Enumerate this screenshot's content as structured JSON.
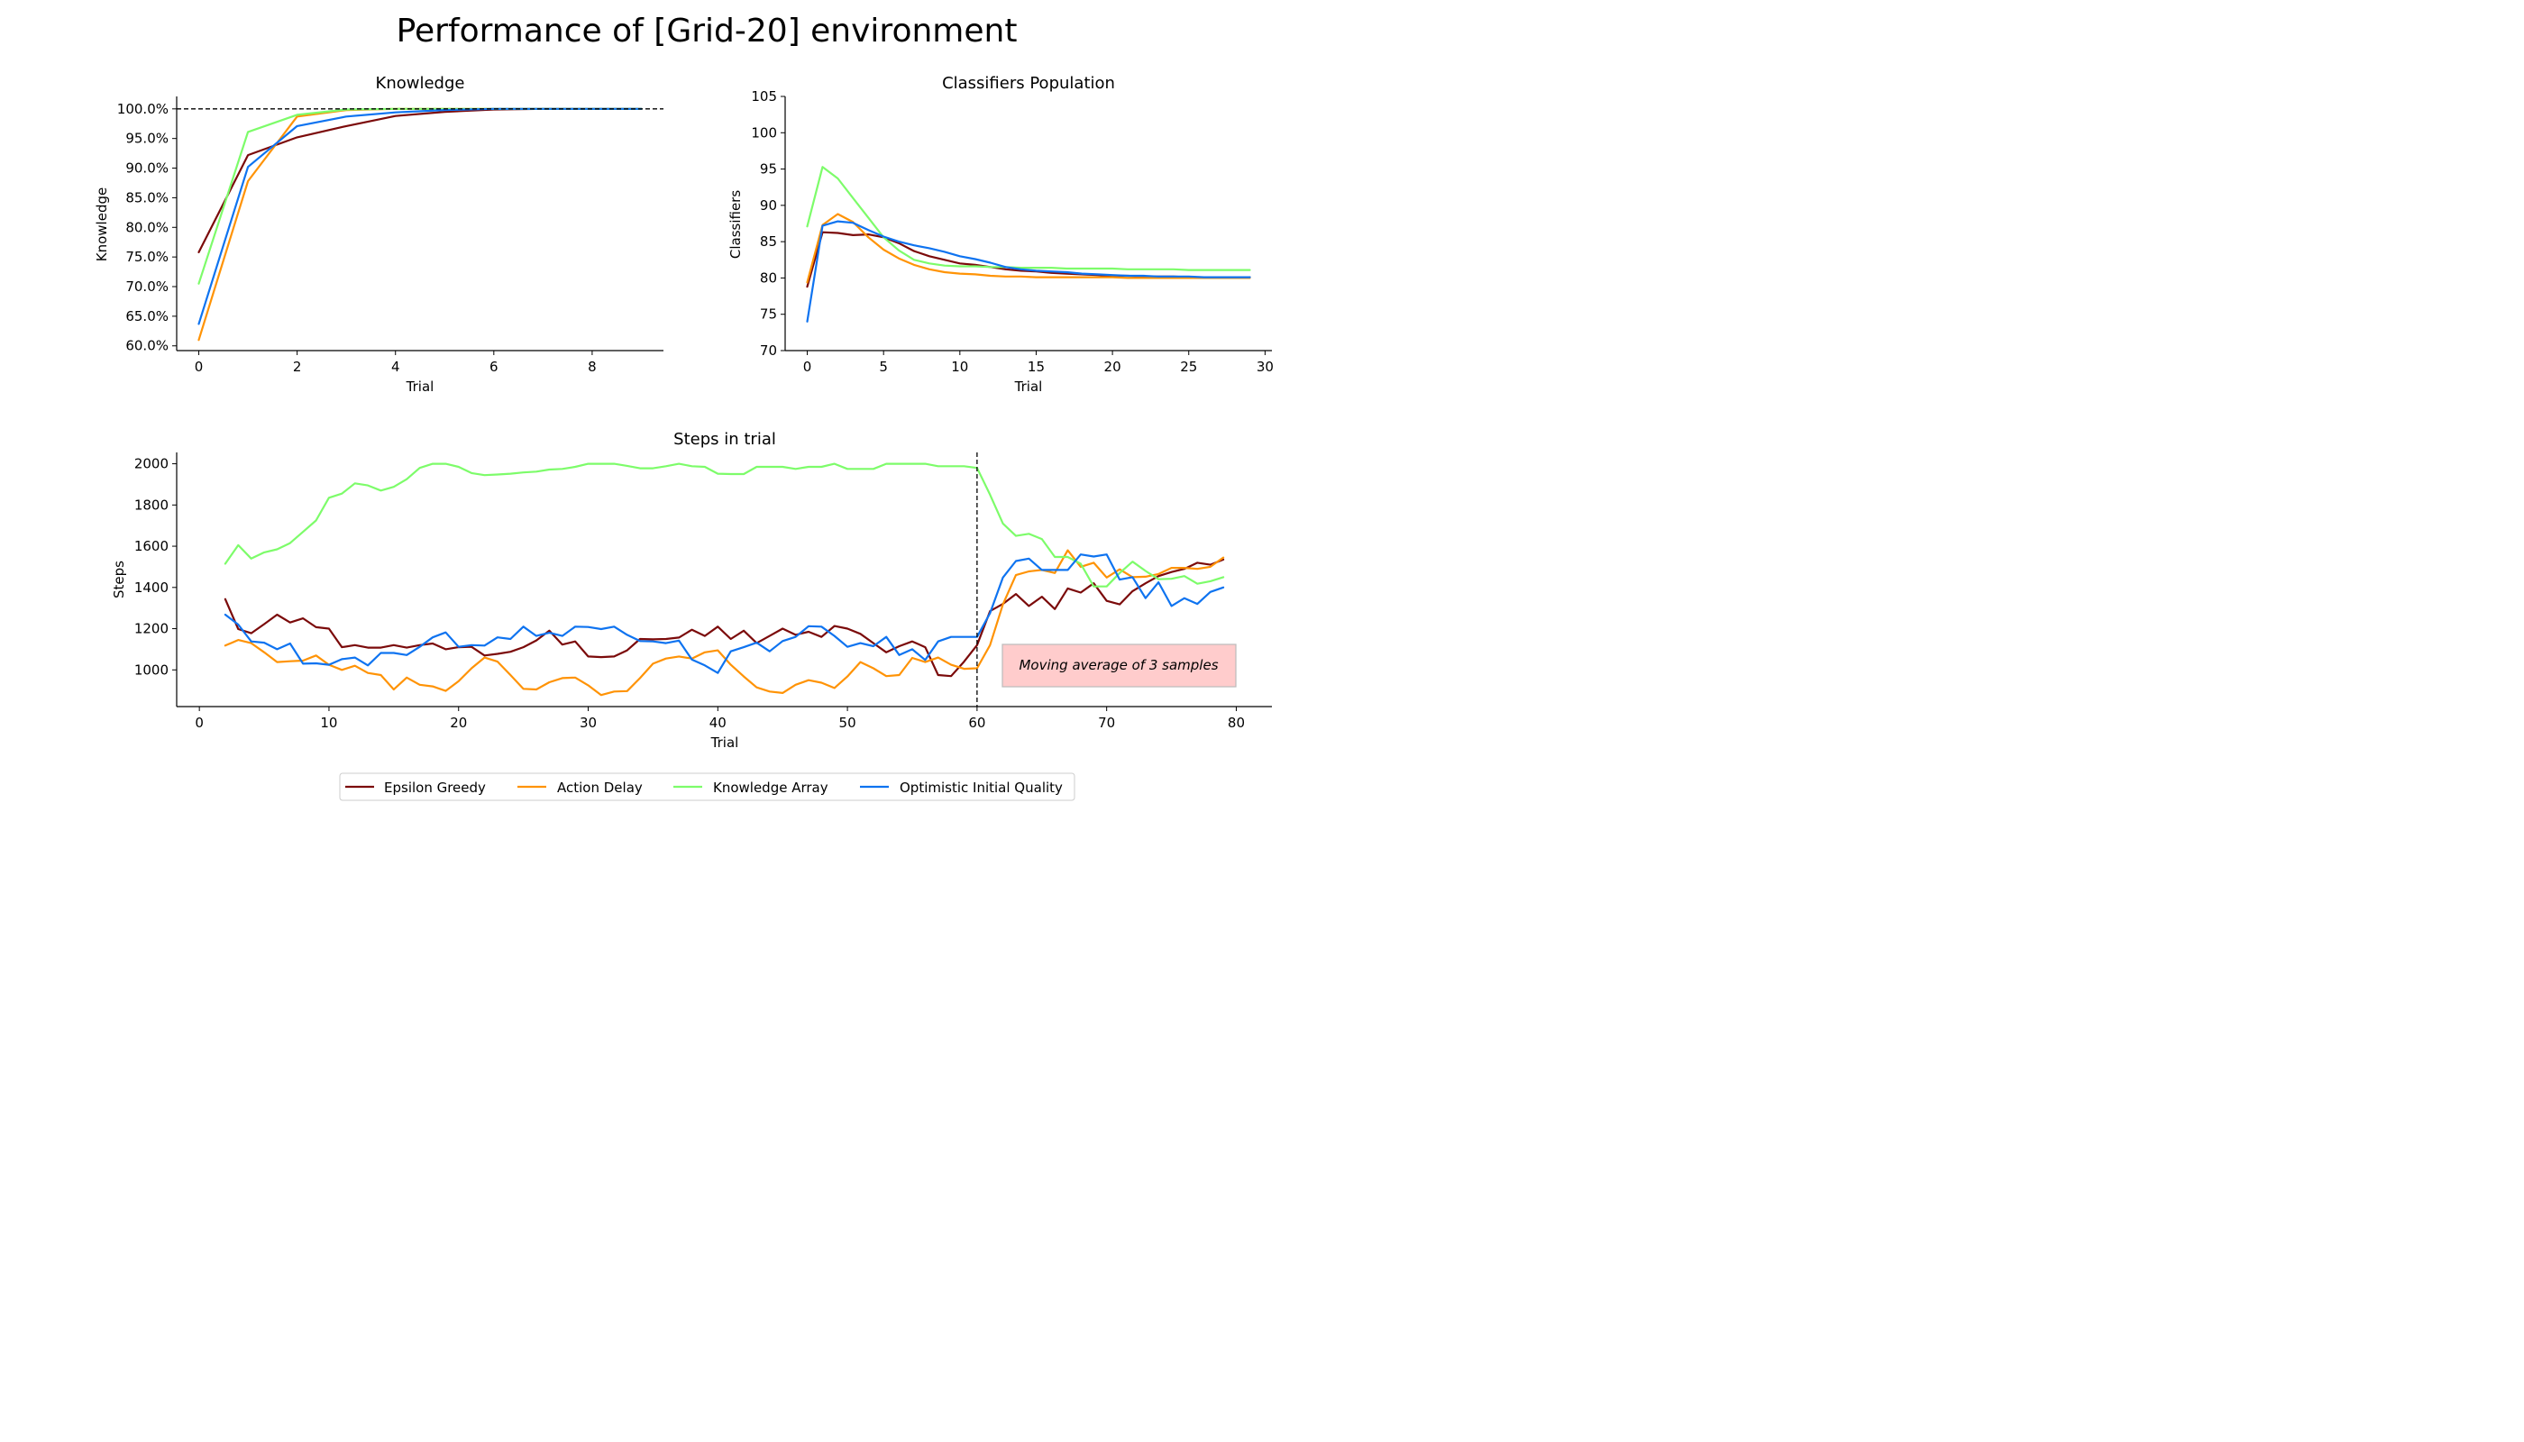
{
  "figure_title": "Performance of [Grid-20] environment",
  "colors": {
    "Epsilon Greedy": "#7b0a0a",
    "Action Delay": "#ff9305",
    "Knowledge Array": "#7dfc6a",
    "Optimistic Initial Quality": "#0e73f0"
  },
  "legend": {
    "placement": "bottom-center",
    "entries": [
      "Epsilon Greedy",
      "Action Delay",
      "Knowledge Array",
      "Optimistic Initial Quality"
    ]
  },
  "annotation": "Moving average of 3 samples",
  "chart_data": [
    {
      "type": "line",
      "title": "Knowledge",
      "xlabel": "Trial",
      "ylabel": "Knowledge",
      "xlim": [
        -0.45,
        9.45
      ],
      "ylim": [
        59.2,
        102.1
      ],
      "xticks": [
        0,
        2,
        4,
        6,
        8
      ],
      "xtick_labels": [
        "0",
        "2",
        "4",
        "6",
        "8"
      ],
      "yticks": [
        60,
        65,
        70,
        75,
        80,
        85,
        90,
        95,
        100
      ],
      "ytick_labels": [
        "60.0%",
        "65.0%",
        "70.0%",
        "75.0%",
        "80.0%",
        "85.0%",
        "90.0%",
        "95.0%",
        "100.0%"
      ],
      "hline": 100,
      "x": [
        0,
        1,
        2,
        3,
        4,
        5,
        6,
        7,
        8,
        9
      ],
      "series": [
        {
          "name": "Epsilon Greedy",
          "values": [
            75.8,
            92.2,
            95.2,
            97.1,
            98.8,
            99.5,
            99.9,
            100,
            100,
            100
          ]
        },
        {
          "name": "Action Delay",
          "values": [
            61.0,
            87.8,
            98.7,
            99.8,
            100,
            100,
            100,
            100,
            100,
            100
          ]
        },
        {
          "name": "Knowledge Array",
          "values": [
            70.5,
            96.1,
            99.0,
            99.9,
            100,
            100,
            100,
            100,
            100,
            100
          ]
        },
        {
          "name": "Optimistic Initial Quality",
          "values": [
            63.7,
            90.2,
            97.1,
            98.7,
            99.4,
            99.8,
            100,
            100,
            100,
            100
          ]
        }
      ]
    },
    {
      "type": "line",
      "title": "Classifiers Population",
      "xlabel": "Trial",
      "ylabel": "Classifiers",
      "xlim": [
        -1.45,
        30.45
      ],
      "ylim": [
        70,
        105
      ],
      "xticks": [
        0,
        5,
        10,
        15,
        20,
        25,
        30
      ],
      "xtick_labels": [
        "0",
        "5",
        "10",
        "15",
        "20",
        "25",
        "30"
      ],
      "yticks": [
        70,
        75,
        80,
        85,
        90,
        95,
        100,
        105
      ],
      "ytick_labels": [
        "70",
        "75",
        "80",
        "85",
        "90",
        "95",
        "100",
        "105"
      ],
      "x": [
        0,
        1,
        2,
        3,
        4,
        5,
        6,
        7,
        8,
        9,
        10,
        11,
        12,
        13,
        14,
        15,
        16,
        17,
        18,
        19,
        20,
        21,
        22,
        23,
        24,
        25,
        26,
        27,
        28,
        29
      ],
      "series": [
        {
          "name": "Epsilon Greedy",
          "values": [
            78.8,
            86.3,
            86.2,
            85.9,
            86.0,
            85.6,
            84.8,
            83.7,
            83.0,
            82.5,
            82.0,
            81.8,
            81.5,
            81.2,
            81.0,
            80.9,
            80.7,
            80.6,
            80.5,
            80.4,
            80.3,
            80.3,
            80.2,
            80.2,
            80.2,
            80.1,
            80.1,
            80.1,
            80.1,
            80.1
          ]
        },
        {
          "name": "Action Delay",
          "values": [
            79.4,
            87.3,
            88.8,
            87.7,
            85.6,
            83.9,
            82.7,
            81.8,
            81.2,
            80.8,
            80.6,
            80.5,
            80.3,
            80.2,
            80.2,
            80.1,
            80.1,
            80.1,
            80.1,
            80.1,
            80.1,
            80.0,
            80.0,
            80.0,
            80.0,
            80.0,
            80.0,
            80.0,
            80.0,
            80.0
          ]
        },
        {
          "name": "Knowledge Array",
          "values": [
            87.1,
            95.3,
            93.7,
            91.0,
            88.3,
            85.6,
            83.8,
            82.5,
            82.0,
            81.7,
            81.6,
            81.6,
            81.5,
            81.5,
            81.4,
            81.4,
            81.4,
            81.3,
            81.3,
            81.3,
            81.3,
            81.2,
            81.2,
            81.2,
            81.2,
            81.1,
            81.1,
            81.1,
            81.1,
            81.1
          ]
        },
        {
          "name": "Optimistic Initial Quality",
          "values": [
            74.0,
            87.2,
            87.8,
            87.6,
            86.6,
            85.7,
            85.0,
            84.5,
            84.1,
            83.6,
            83.0,
            82.6,
            82.1,
            81.5,
            81.2,
            81.0,
            80.9,
            80.8,
            80.6,
            80.5,
            80.4,
            80.3,
            80.3,
            80.2,
            80.2,
            80.2,
            80.1,
            80.1,
            80.1,
            80.1
          ]
        }
      ]
    },
    {
      "type": "line",
      "title": "Steps in trial",
      "xlabel": "Trial",
      "ylabel": "Steps",
      "xlim": [
        -1.75,
        82.75
      ],
      "ylim": [
        822,
        2055
      ],
      "xticks": [
        0,
        10,
        20,
        30,
        40,
        50,
        60,
        70,
        80
      ],
      "xtick_labels": [
        "0",
        "10",
        "20",
        "30",
        "40",
        "50",
        "60",
        "70",
        "80"
      ],
      "yticks": [
        1000,
        1200,
        1400,
        1600,
        1800,
        2000
      ],
      "ytick_labels": [
        "1000",
        "1200",
        "1400",
        "1600",
        "1800",
        "2000"
      ],
      "vline": 60,
      "x": [
        2,
        3,
        4,
        5,
        6,
        7,
        8,
        9,
        10,
        11,
        12,
        13,
        14,
        15,
        16,
        17,
        18,
        19,
        20,
        21,
        22,
        23,
        24,
        25,
        26,
        27,
        28,
        29,
        30,
        31,
        32,
        33,
        34,
        35,
        36,
        37,
        38,
        39,
        40,
        41,
        42,
        43,
        44,
        45,
        46,
        47,
        48,
        49,
        50,
        51,
        52,
        53,
        54,
        55,
        56,
        57,
        58,
        59,
        60,
        61,
        62,
        63,
        64,
        65,
        66,
        67,
        68,
        69,
        70,
        71,
        72,
        73,
        74,
        75,
        76,
        77,
        78,
        79
      ],
      "series": [
        {
          "name": "Epsilon Greedy",
          "values": [
            1343,
            1198,
            1178,
            1222,
            1268,
            1230,
            1250,
            1207,
            1200,
            1110,
            1120,
            1108,
            1108,
            1120,
            1108,
            1120,
            1128,
            1100,
            1110,
            1112,
            1070,
            1078,
            1088,
            1110,
            1143,
            1190,
            1123,
            1138,
            1065,
            1062,
            1065,
            1095,
            1150,
            1148,
            1150,
            1157,
            1195,
            1165,
            1210,
            1150,
            1190,
            1130,
            1165,
            1200,
            1170,
            1185,
            1160,
            1213,
            1200,
            1175,
            1130,
            1085,
            1115,
            1138,
            1110,
            975,
            970,
            1040,
            1120,
            1285,
            1320,
            1368,
            1310,
            1355,
            1295,
            1395,
            1375,
            1420,
            1335,
            1318,
            1382,
            1420,
            1455,
            1475,
            1490,
            1520,
            1510,
            1535
          ]
        },
        {
          "name": "Action Delay",
          "values": [
            1118,
            1145,
            1130,
            1085,
            1038,
            1042,
            1045,
            1070,
            1025,
            1000,
            1020,
            985,
            975,
            905,
            963,
            928,
            920,
            898,
            945,
            1008,
            1060,
            1040,
            975,
            908,
            905,
            940,
            960,
            963,
            925,
            878,
            895,
            897,
            960,
            1030,
            1055,
            1065,
            1055,
            1085,
            1095,
            1025,
            968,
            915,
            895,
            888,
            928,
            950,
            938,
            912,
            968,
            1038,
            1008,
            970,
            975,
            1058,
            1038,
            1060,
            1025,
            1005,
            1008,
            1120,
            1318,
            1460,
            1478,
            1485,
            1470,
            1580,
            1500,
            1520,
            1448,
            1488,
            1450,
            1452,
            1465,
            1495,
            1495,
            1490,
            1500,
            1545
          ]
        },
        {
          "name": "Knowledge Array",
          "values": [
            1515,
            1605,
            1540,
            1570,
            1585,
            1615,
            1670,
            1725,
            1835,
            1855,
            1905,
            1895,
            1870,
            1888,
            1925,
            1980,
            2000,
            2000,
            1985,
            1955,
            1945,
            1948,
            1952,
            1958,
            1962,
            1972,
            1975,
            1985,
            2000,
            2000,
            2000,
            1990,
            1978,
            1978,
            1988,
            2000,
            1988,
            1985,
            1952,
            1950,
            1950,
            1985,
            1985,
            1985,
            1975,
            1985,
            1985,
            2000,
            1975,
            1975,
            1975,
            2000,
            2000,
            2000,
            2000,
            1988,
            1988,
            1988,
            1980,
            1850,
            1710,
            1650,
            1660,
            1635,
            1548,
            1548,
            1515,
            1405,
            1405,
            1470,
            1525,
            1480,
            1440,
            1442,
            1455,
            1418,
            1430,
            1450
          ]
        },
        {
          "name": "Optimistic Initial Quality",
          "values": [
            1268,
            1220,
            1138,
            1132,
            1100,
            1128,
            1030,
            1032,
            1025,
            1052,
            1060,
            1022,
            1082,
            1082,
            1072,
            1112,
            1158,
            1182,
            1112,
            1120,
            1118,
            1158,
            1150,
            1210,
            1165,
            1180,
            1165,
            1210,
            1208,
            1198,
            1210,
            1170,
            1140,
            1138,
            1130,
            1142,
            1050,
            1022,
            985,
            1090,
            1110,
            1132,
            1090,
            1140,
            1160,
            1212,
            1210,
            1165,
            1112,
            1130,
            1115,
            1160,
            1072,
            1100,
            1048,
            1138,
            1160,
            1160,
            1160,
            1275,
            1448,
            1528,
            1540,
            1485,
            1485,
            1485,
            1560,
            1550,
            1560,
            1438,
            1450,
            1348,
            1425,
            1310,
            1348,
            1320,
            1378,
            1400
          ]
        }
      ]
    }
  ]
}
